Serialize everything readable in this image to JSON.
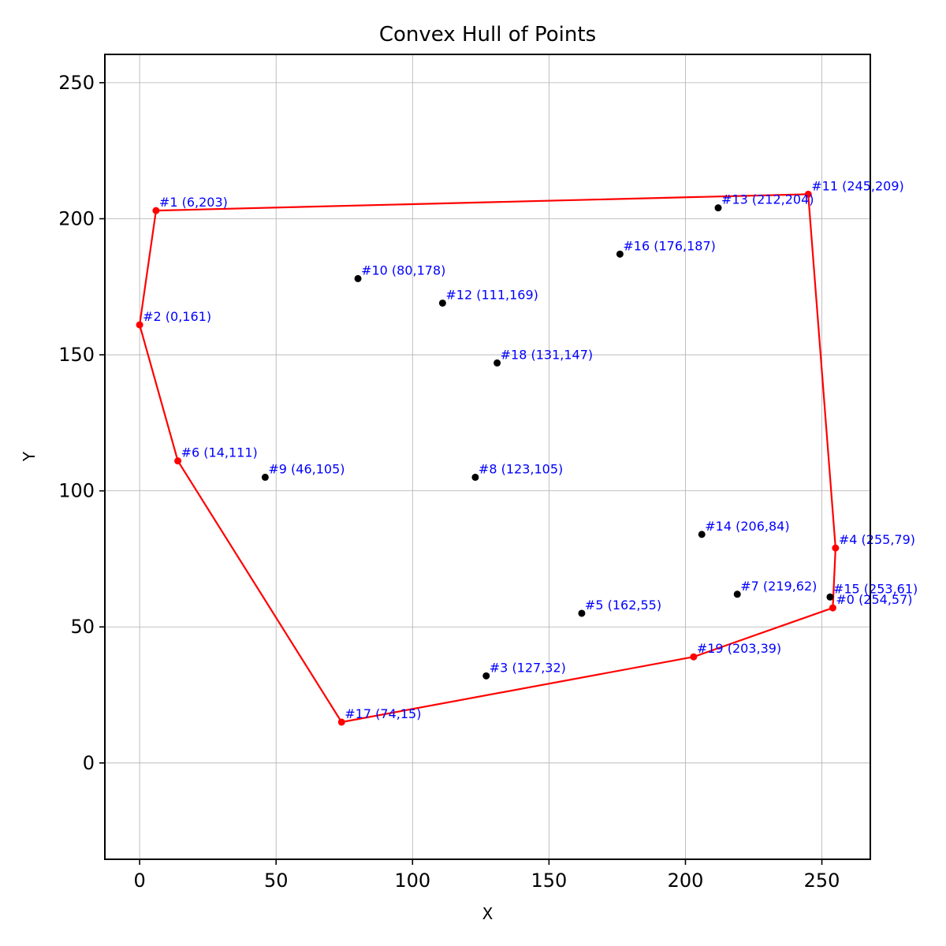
{
  "chart_data": {
    "type": "scatter",
    "title": "Convex Hull of Points",
    "xlabel": "X",
    "ylabel": "Y",
    "xlim": [
      -12.75,
      267.75
    ],
    "ylim": [
      -35.4,
      260.4
    ],
    "xticks": [
      0,
      50,
      100,
      150,
      200,
      250
    ],
    "yticks": [
      0,
      50,
      100,
      150,
      200,
      250
    ],
    "grid": true,
    "colors": {
      "hull": "#ff0000",
      "interior": "#000000",
      "label": "#0000ff",
      "grid": "#b0b0b0"
    },
    "points": [
      {
        "id": 0,
        "x": 254,
        "y": 57,
        "label": "#0 (254,57)",
        "hull": true
      },
      {
        "id": 1,
        "x": 6,
        "y": 203,
        "label": "#1 (6,203)",
        "hull": true
      },
      {
        "id": 2,
        "x": 0,
        "y": 161,
        "label": "#2 (0,161)",
        "hull": true
      },
      {
        "id": 3,
        "x": 127,
        "y": 32,
        "label": "#3 (127,32)",
        "hull": false
      },
      {
        "id": 4,
        "x": 255,
        "y": 79,
        "label": "#4 (255,79)",
        "hull": true
      },
      {
        "id": 5,
        "x": 162,
        "y": 55,
        "label": "#5 (162,55)",
        "hull": false
      },
      {
        "id": 6,
        "x": 14,
        "y": 111,
        "label": "#6 (14,111)",
        "hull": true
      },
      {
        "id": 7,
        "x": 219,
        "y": 62,
        "label": "#7 (219,62)",
        "hull": false
      },
      {
        "id": 8,
        "x": 123,
        "y": 105,
        "label": "#8 (123,105)",
        "hull": false
      },
      {
        "id": 9,
        "x": 46,
        "y": 105,
        "label": "#9 (46,105)",
        "hull": false
      },
      {
        "id": 10,
        "x": 80,
        "y": 178,
        "label": "#10 (80,178)",
        "hull": false
      },
      {
        "id": 11,
        "x": 245,
        "y": 209,
        "label": "#11 (245,209)",
        "hull": true
      },
      {
        "id": 12,
        "x": 111,
        "y": 169,
        "label": "#12 (111,169)",
        "hull": false
      },
      {
        "id": 13,
        "x": 212,
        "y": 204,
        "label": "#13 (212,204)",
        "hull": false
      },
      {
        "id": 14,
        "x": 206,
        "y": 84,
        "label": "#14 (206,84)",
        "hull": false
      },
      {
        "id": 15,
        "x": 253,
        "y": 61,
        "label": "#15 (253,61)",
        "hull": false
      },
      {
        "id": 16,
        "x": 176,
        "y": 187,
        "label": "#16 (176,187)",
        "hull": false
      },
      {
        "id": 17,
        "x": 74,
        "y": 15,
        "label": "#17 (74,15)",
        "hull": true
      },
      {
        "id": 18,
        "x": 131,
        "y": 147,
        "label": "#18 (131,147)",
        "hull": false
      },
      {
        "id": 19,
        "x": 203,
        "y": 39,
        "label": "#19 (203,39)",
        "hull": true
      }
    ],
    "hull_order": [
      1,
      11,
      4,
      0,
      19,
      17,
      6,
      2,
      1
    ]
  }
}
